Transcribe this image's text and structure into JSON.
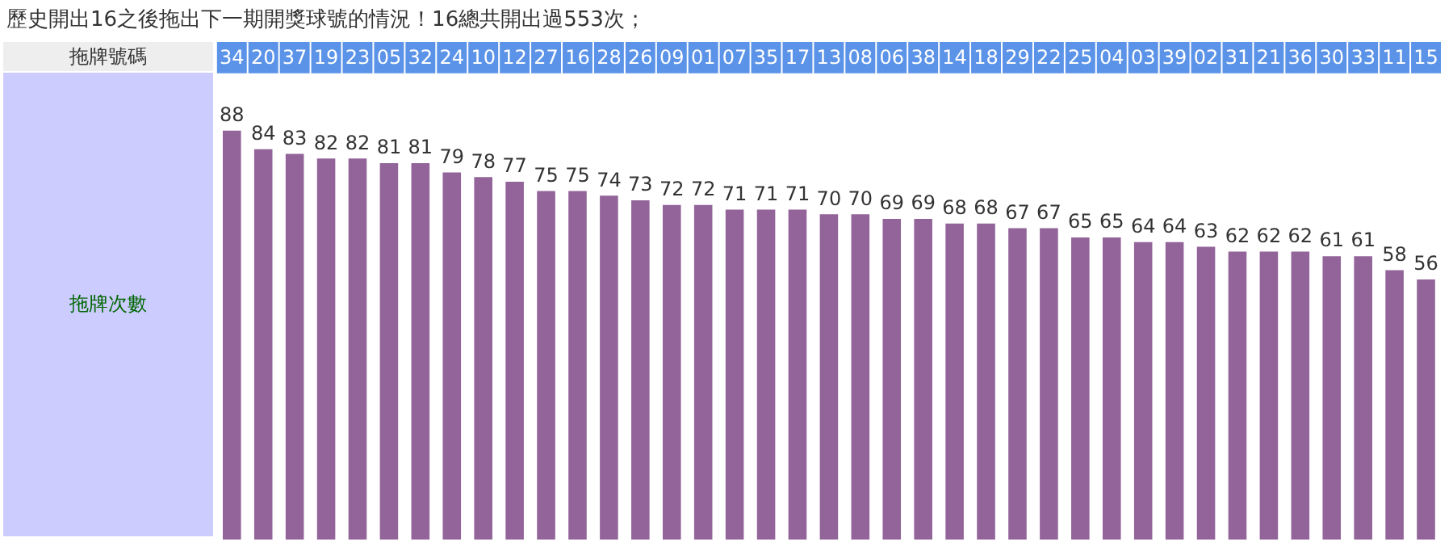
{
  "chart_data": {
    "type": "bar",
    "title": "歷史開出16之後拖出下一期開獎球號的情況！16總共開出過553次；",
    "xlabel": "拖牌號碼",
    "ylabel": "拖牌次數",
    "categories": [
      "34",
      "20",
      "37",
      "19",
      "23",
      "05",
      "32",
      "24",
      "10",
      "12",
      "27",
      "16",
      "28",
      "26",
      "09",
      "01",
      "07",
      "35",
      "17",
      "13",
      "08",
      "06",
      "38",
      "14",
      "18",
      "29",
      "22",
      "25",
      "04",
      "03",
      "39",
      "02",
      "31",
      "21",
      "36",
      "30",
      "33",
      "11",
      "15"
    ],
    "values": [
      88,
      84,
      83,
      82,
      82,
      81,
      81,
      79,
      78,
      77,
      75,
      75,
      74,
      73,
      72,
      72,
      71,
      71,
      71,
      70,
      70,
      69,
      69,
      68,
      68,
      67,
      67,
      65,
      65,
      64,
      64,
      63,
      62,
      62,
      62,
      61,
      61,
      58,
      56
    ],
    "color": "#93649a",
    "data_labels": true,
    "tick_labels": "x"
  }
}
